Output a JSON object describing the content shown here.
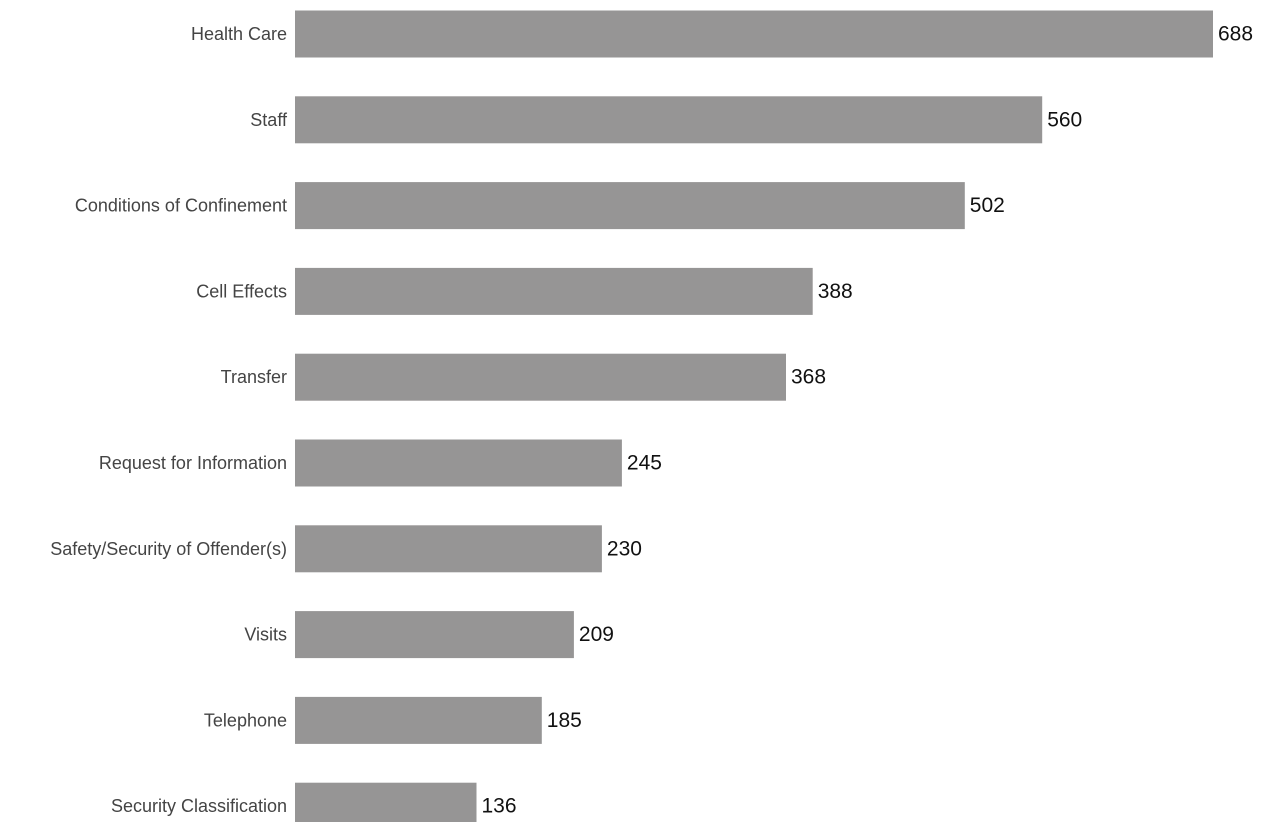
{
  "chart_data": {
    "type": "bar",
    "orientation": "horizontal",
    "categories": [
      "Health Care",
      "Staff",
      "Conditions of Confinement",
      "Cell Effects",
      "Transfer",
      "Request for Information",
      "Safety/Security of Offender(s)",
      "Visits",
      "Telephone",
      "Security Classification"
    ],
    "values": [
      688,
      560,
      502,
      388,
      368,
      245,
      230,
      209,
      185,
      136
    ],
    "title": "",
    "xlabel": "",
    "ylabel": "",
    "bar_color": "#969595",
    "grid": false,
    "legend": "none",
    "data_labels": true
  }
}
